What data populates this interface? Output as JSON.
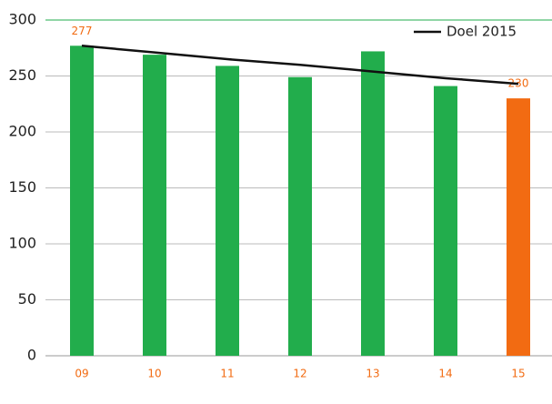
{
  "chart_data": {
    "type": "bar",
    "categories": [
      "09",
      "10",
      "11",
      "12",
      "13",
      "14",
      "15"
    ],
    "values": [
      277,
      269,
      259,
      249,
      272,
      241,
      230
    ],
    "value_labels": [
      "277",
      null,
      null,
      null,
      null,
      null,
      "230"
    ],
    "colors": [
      "#22ad4c",
      "#22ad4c",
      "#22ad4c",
      "#22ad4c",
      "#22ad4c",
      "#22ad4c",
      "#f26b12"
    ],
    "label_color": "#f26b12",
    "series": [
      {
        "name": "Doel 2015",
        "color": "#111111",
        "values": [
          277,
          271,
          265,
          260,
          254,
          248,
          243
        ]
      }
    ],
    "ylim": [
      0,
      300
    ],
    "yticks": [
      0,
      50,
      100,
      150,
      200,
      250,
      300
    ],
    "grid": true,
    "legend": "upper right"
  }
}
